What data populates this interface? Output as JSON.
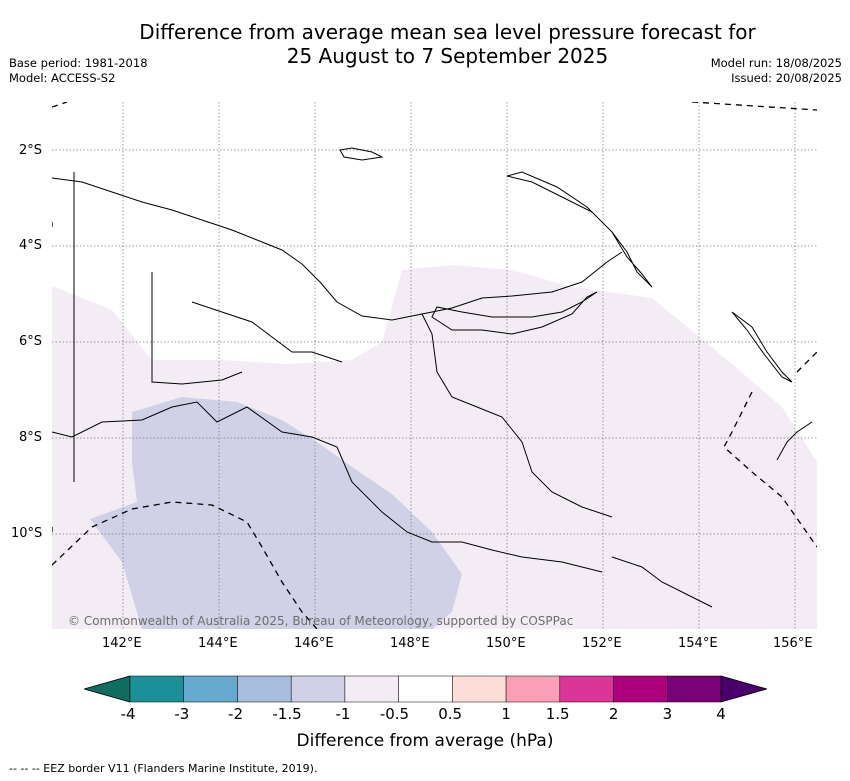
{
  "title": {
    "line1": "Difference from average mean sea level pressure forecast for",
    "line2": "25 August to 7 September 2025"
  },
  "meta_left": {
    "base_period": "Base period: 1981-2018",
    "model": "Model: ACCESS-S2"
  },
  "meta_right": {
    "model_run": "Model run: 18/08/2025",
    "issued": "Issued: 20/08/2025"
  },
  "lat_labels": [
    "2°S",
    "4°S",
    "6°S",
    "8°S",
    "10°S"
  ],
  "lon_labels": [
    "142°E",
    "144°E",
    "146°E",
    "148°E",
    "150°E",
    "152°E",
    "154°E",
    "156°E"
  ],
  "copyright": "© Commonwealth of Australia 2025, Bureau of Meteorology, supported by COSPPac",
  "colorbar": {
    "ticks": [
      "-4",
      "-3",
      "-2",
      "-1.5",
      "-1",
      "-0.5",
      "0.5",
      "1",
      "1.5",
      "2",
      "3",
      "4"
    ],
    "colors": [
      "#0f6e60",
      "#1c9099",
      "#67a9cf",
      "#a6bddb",
      "#d0d1e6",
      "#f3ecf5",
      "#ffffff",
      "#fdded9",
      "#fa9fb5",
      "#dd3497",
      "#ae017e",
      "#7a0177",
      "#49006a"
    ],
    "label": "Difference from average (hPa)"
  },
  "eez_note": "-- -- -- EEZ border V11 (Flanders Marine Institute, 2019).",
  "map_regions": [
    {
      "name": "anomaly-minus-0.5-to-minus-1",
      "color": "#f3ecf5"
    },
    {
      "name": "anomaly-minus-1-to-minus-1.5",
      "color": "#d0d1e6"
    }
  ]
}
